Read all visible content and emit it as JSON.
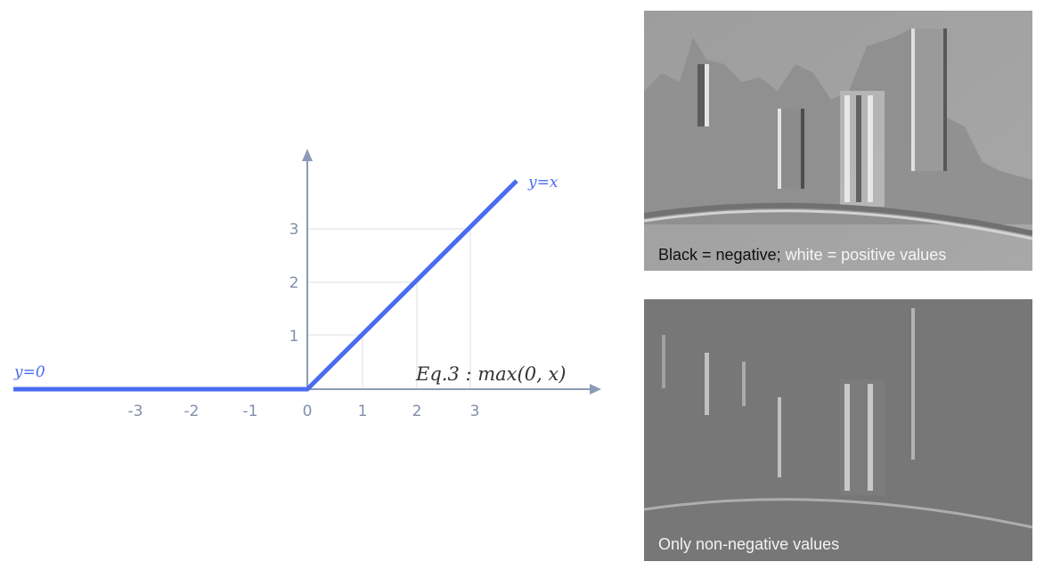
{
  "diagram": {
    "function": "ReLU",
    "equation": "Eq.3 : max(0, x)",
    "left_label": "y=0",
    "right_label": "y=x",
    "x_ticks": [
      "-3",
      "-2",
      "-1",
      "0",
      "1",
      "2",
      "3"
    ],
    "y_ticks": [
      "1",
      "2",
      "3"
    ],
    "line_color": "#4a6cf0",
    "axis_color": "#8c9bb5"
  },
  "panels": {
    "top": {
      "caption_part1": "Black = negative;",
      "caption_part2": "white = positive values"
    },
    "bottom": {
      "caption": "Only non-negative values"
    }
  }
}
